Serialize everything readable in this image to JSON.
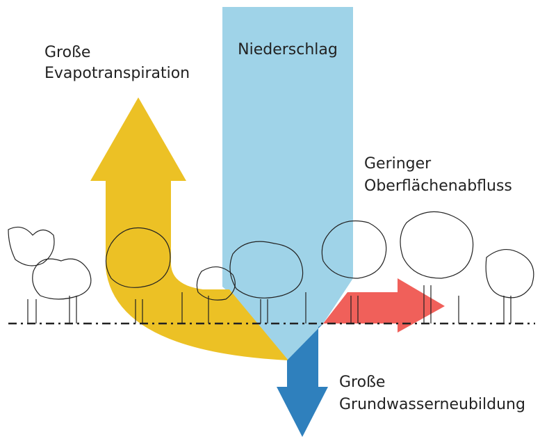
{
  "labels": {
    "precipitation": "Niederschlag",
    "evapotranspiration": [
      "Große",
      "Evapotranspiration"
    ],
    "runoff": [
      "Geringer",
      "Oberflächenabfluss"
    ],
    "groundwater": [
      "Große",
      "Grundwasserneubildung"
    ]
  }
}
